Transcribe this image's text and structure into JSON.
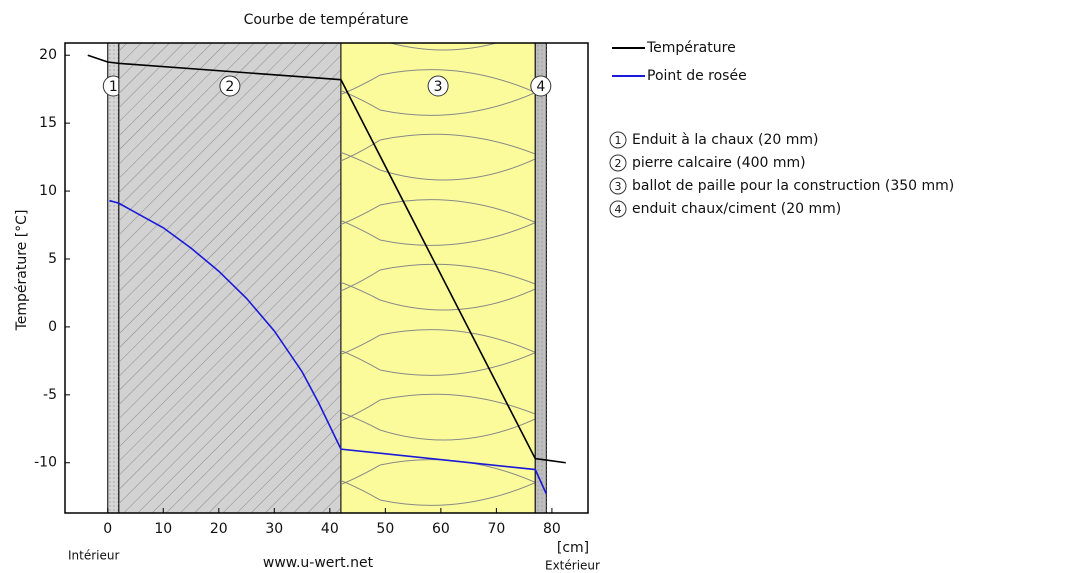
{
  "chart_data": {
    "type": "line",
    "title": "Courbe de température",
    "y_label": "Température [°C]",
    "x_unit": "[cm]",
    "left_label": "Intérieur",
    "right_label": "Extérieur",
    "source": "www.u-wert.net",
    "xlim": [
      -7.7,
      86.5
    ],
    "ylim": [
      -13.7,
      20.9
    ],
    "xticks": [
      0,
      10,
      20,
      30,
      40,
      50,
      60,
      70,
      80
    ],
    "yticks": [
      -10,
      -5,
      0,
      5,
      10,
      15,
      20
    ],
    "series": [
      {
        "name": "Température",
        "color": "#000000",
        "x": [
          -3.6,
          0,
          2,
          42,
          77,
          79,
          82.5
        ],
        "values": [
          20,
          19.5,
          19.4,
          18.2,
          -9.7,
          -9.8,
          -10
        ]
      },
      {
        "name": "Point de rosée",
        "color": "#1a1ad8",
        "x": [
          0.3,
          2,
          6,
          10,
          15,
          20,
          25,
          30,
          35,
          38,
          42,
          77,
          79
        ],
        "values": [
          9.3,
          9.1,
          8.2,
          7.3,
          5.8,
          4.1,
          2.1,
          -0.3,
          -3.3,
          -5.6,
          -9.0,
          -10.5,
          -12.3
        ]
      }
    ],
    "layers": [
      {
        "number": "1",
        "name": "Enduit à la chaux (20 mm)",
        "start": 0,
        "end": 2,
        "color": "#d6d6d6"
      },
      {
        "number": "2",
        "name": "pierre calcaire (400 mm)",
        "start": 2,
        "end": 42,
        "color": "#d2d2d2"
      },
      {
        "number": "3",
        "name": "ballot de paille pour la construction (350 mm)",
        "start": 42,
        "end": 77,
        "color": "#fbfb9c"
      },
      {
        "number": "4",
        "name": "enduit chaux/ciment (20 mm)",
        "start": 77,
        "end": 79,
        "color": "#bdbdbd"
      }
    ]
  }
}
